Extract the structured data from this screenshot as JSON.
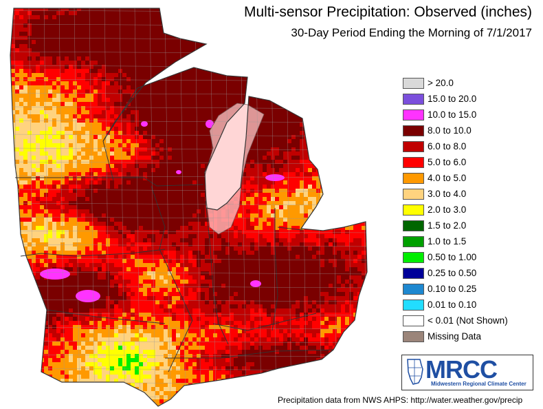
{
  "header": {
    "title": "Multi-sensor Precipitation: Observed (inches)",
    "subtitle": "30-Day Period Ending the Morning of 7/1/2017"
  },
  "legend": {
    "items": [
      {
        "label": "> 20.0",
        "color": "#d9d9d9"
      },
      {
        "label": "15.0 to 20.0",
        "color": "#7b4fdc"
      },
      {
        "label": "10.0 to 15.0",
        "color": "#ff33ff"
      },
      {
        "label": "8.0 to 10.0",
        "color": "#7a0000"
      },
      {
        "label": "6.0 to 8.0",
        "color": "#c00000"
      },
      {
        "label": "5.0 to 6.0",
        "color": "#ff0000"
      },
      {
        "label": "4.0 to 5.0",
        "color": "#ff9900"
      },
      {
        "label": "3.0 to 4.0",
        "color": "#ffd37f"
      },
      {
        "label": "2.0 to 3.0",
        "color": "#ffff00"
      },
      {
        "label": "1.5 to 2.0",
        "color": "#006600"
      },
      {
        "label": "1.0 to 1.5",
        "color": "#00a000"
      },
      {
        "label": "0.50 to 1.00",
        "color": "#00ee00"
      },
      {
        "label": "0.25 to 0.50",
        "color": "#000099"
      },
      {
        "label": "0.10 to 0.25",
        "color": "#1e88d0"
      },
      {
        "label": "0.01 to 0.10",
        "color": "#22ddff"
      },
      {
        "label": "< 0.01 (Not Shown)",
        "color": "#ffffff"
      },
      {
        "label": "Missing Data",
        "color": "#9b857a"
      }
    ]
  },
  "logo": {
    "name": "MRCC",
    "subtitle": "Midwestern Regional Climate Center"
  },
  "footer": {
    "source": "Precipitation data from NWS AHPS: http://water.weather.gov/precip"
  }
}
